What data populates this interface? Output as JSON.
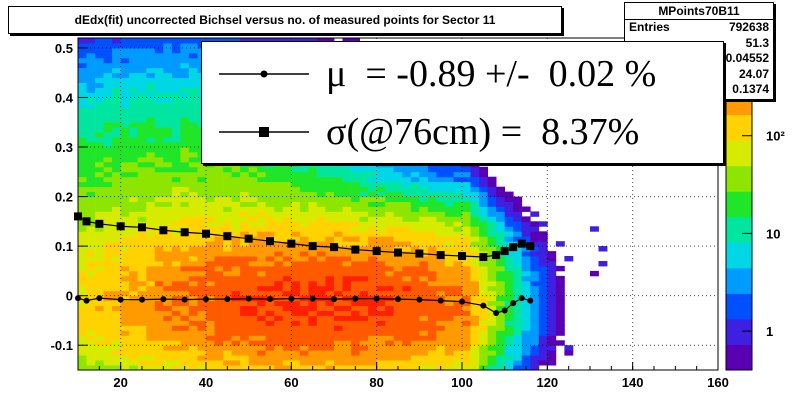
{
  "title": "dEdx(fit) uncorrected Bichsel versus no. of measured points for Sector 11",
  "stats": {
    "name": "MPoints70B11",
    "rows": [
      {
        "label": "Entries",
        "value": "792638"
      },
      {
        "label": "",
        "value": "51.3"
      },
      {
        "label": "",
        "value": "0.04552"
      },
      {
        "label": "",
        "value": "24.07"
      },
      {
        "label": "",
        "value": "0.1374"
      }
    ]
  },
  "legend": {
    "mu_text": "μ  = -0.89 +/-  0.02 %",
    "sigma_text": "σ(@76cm) =  8.37%"
  },
  "colors": {
    "mu_marker": "#000000",
    "sigma_marker": "#000000",
    "palette": [
      "#5a00b4",
      "#3f1fe0",
      "#0050ff",
      "#009bff",
      "#00d7e6",
      "#00e6a0",
      "#20e62a",
      "#8ee600",
      "#d7eb00",
      "#ffd200",
      "#ff9a00",
      "#ff5a00",
      "#ff2000"
    ]
  },
  "chart_data": {
    "type": "heatmap",
    "title": "dEdx(fit) uncorrected Bichsel versus no. of measured points for Sector 11",
    "xlim": [
      10,
      160
    ],
    "ylim": [
      -0.15,
      0.52
    ],
    "x_ticks": [
      20,
      40,
      60,
      80,
      100,
      120,
      140,
      160
    ],
    "y_ticks": [
      -0.1,
      0,
      0.1,
      0.2,
      0.3,
      0.4,
      0.5
    ],
    "y_tick_labels": [
      "-0.1",
      "0",
      "0.1",
      "0.2",
      "0.3",
      "0.4",
      "0.5"
    ],
    "z_scale": "log",
    "z_ticks": [
      1,
      10,
      100
    ],
    "z_tick_labels": [
      "1",
      "10",
      "10²"
    ],
    "grid": true,
    "density_model": {
      "bands": [
        {
          "x_center": 68,
          "y_center": -0.02,
          "x_sigma": 30,
          "y_sigma": 0.085,
          "peak": 600
        },
        {
          "x_center": 30,
          "y_center": 0.08,
          "x_sigma": 25,
          "y_sigma": 0.18,
          "peak": 70
        }
      ],
      "x_cutoff": 118
    },
    "series": [
      {
        "name": "μ",
        "marker": "circle",
        "x": [
          10,
          12,
          15,
          20,
          25,
          30,
          35,
          40,
          45,
          50,
          55,
          60,
          65,
          70,
          75,
          80,
          85,
          90,
          95,
          100,
          105,
          108,
          110,
          112,
          114,
          116
        ],
        "y": [
          -0.005,
          -0.01,
          -0.005,
          -0.008,
          -0.008,
          -0.007,
          -0.008,
          -0.007,
          -0.007,
          -0.006,
          -0.007,
          -0.006,
          -0.006,
          -0.007,
          -0.006,
          -0.006,
          -0.007,
          -0.008,
          -0.01,
          -0.012,
          -0.02,
          -0.035,
          -0.03,
          -0.015,
          -0.005,
          -0.01
        ]
      },
      {
        "name": "σ(@76cm)",
        "marker": "square",
        "x": [
          10,
          12,
          15,
          20,
          25,
          30,
          35,
          40,
          45,
          50,
          55,
          60,
          65,
          70,
          75,
          80,
          85,
          90,
          95,
          100,
          105,
          108,
          110,
          112,
          114,
          116
        ],
        "y": [
          0.16,
          0.15,
          0.145,
          0.14,
          0.138,
          0.132,
          0.128,
          0.125,
          0.12,
          0.115,
          0.11,
          0.105,
          0.1,
          0.098,
          0.093,
          0.09,
          0.087,
          0.085,
          0.082,
          0.08,
          0.078,
          0.082,
          0.09,
          0.098,
          0.105,
          0.1
        ]
      }
    ]
  }
}
